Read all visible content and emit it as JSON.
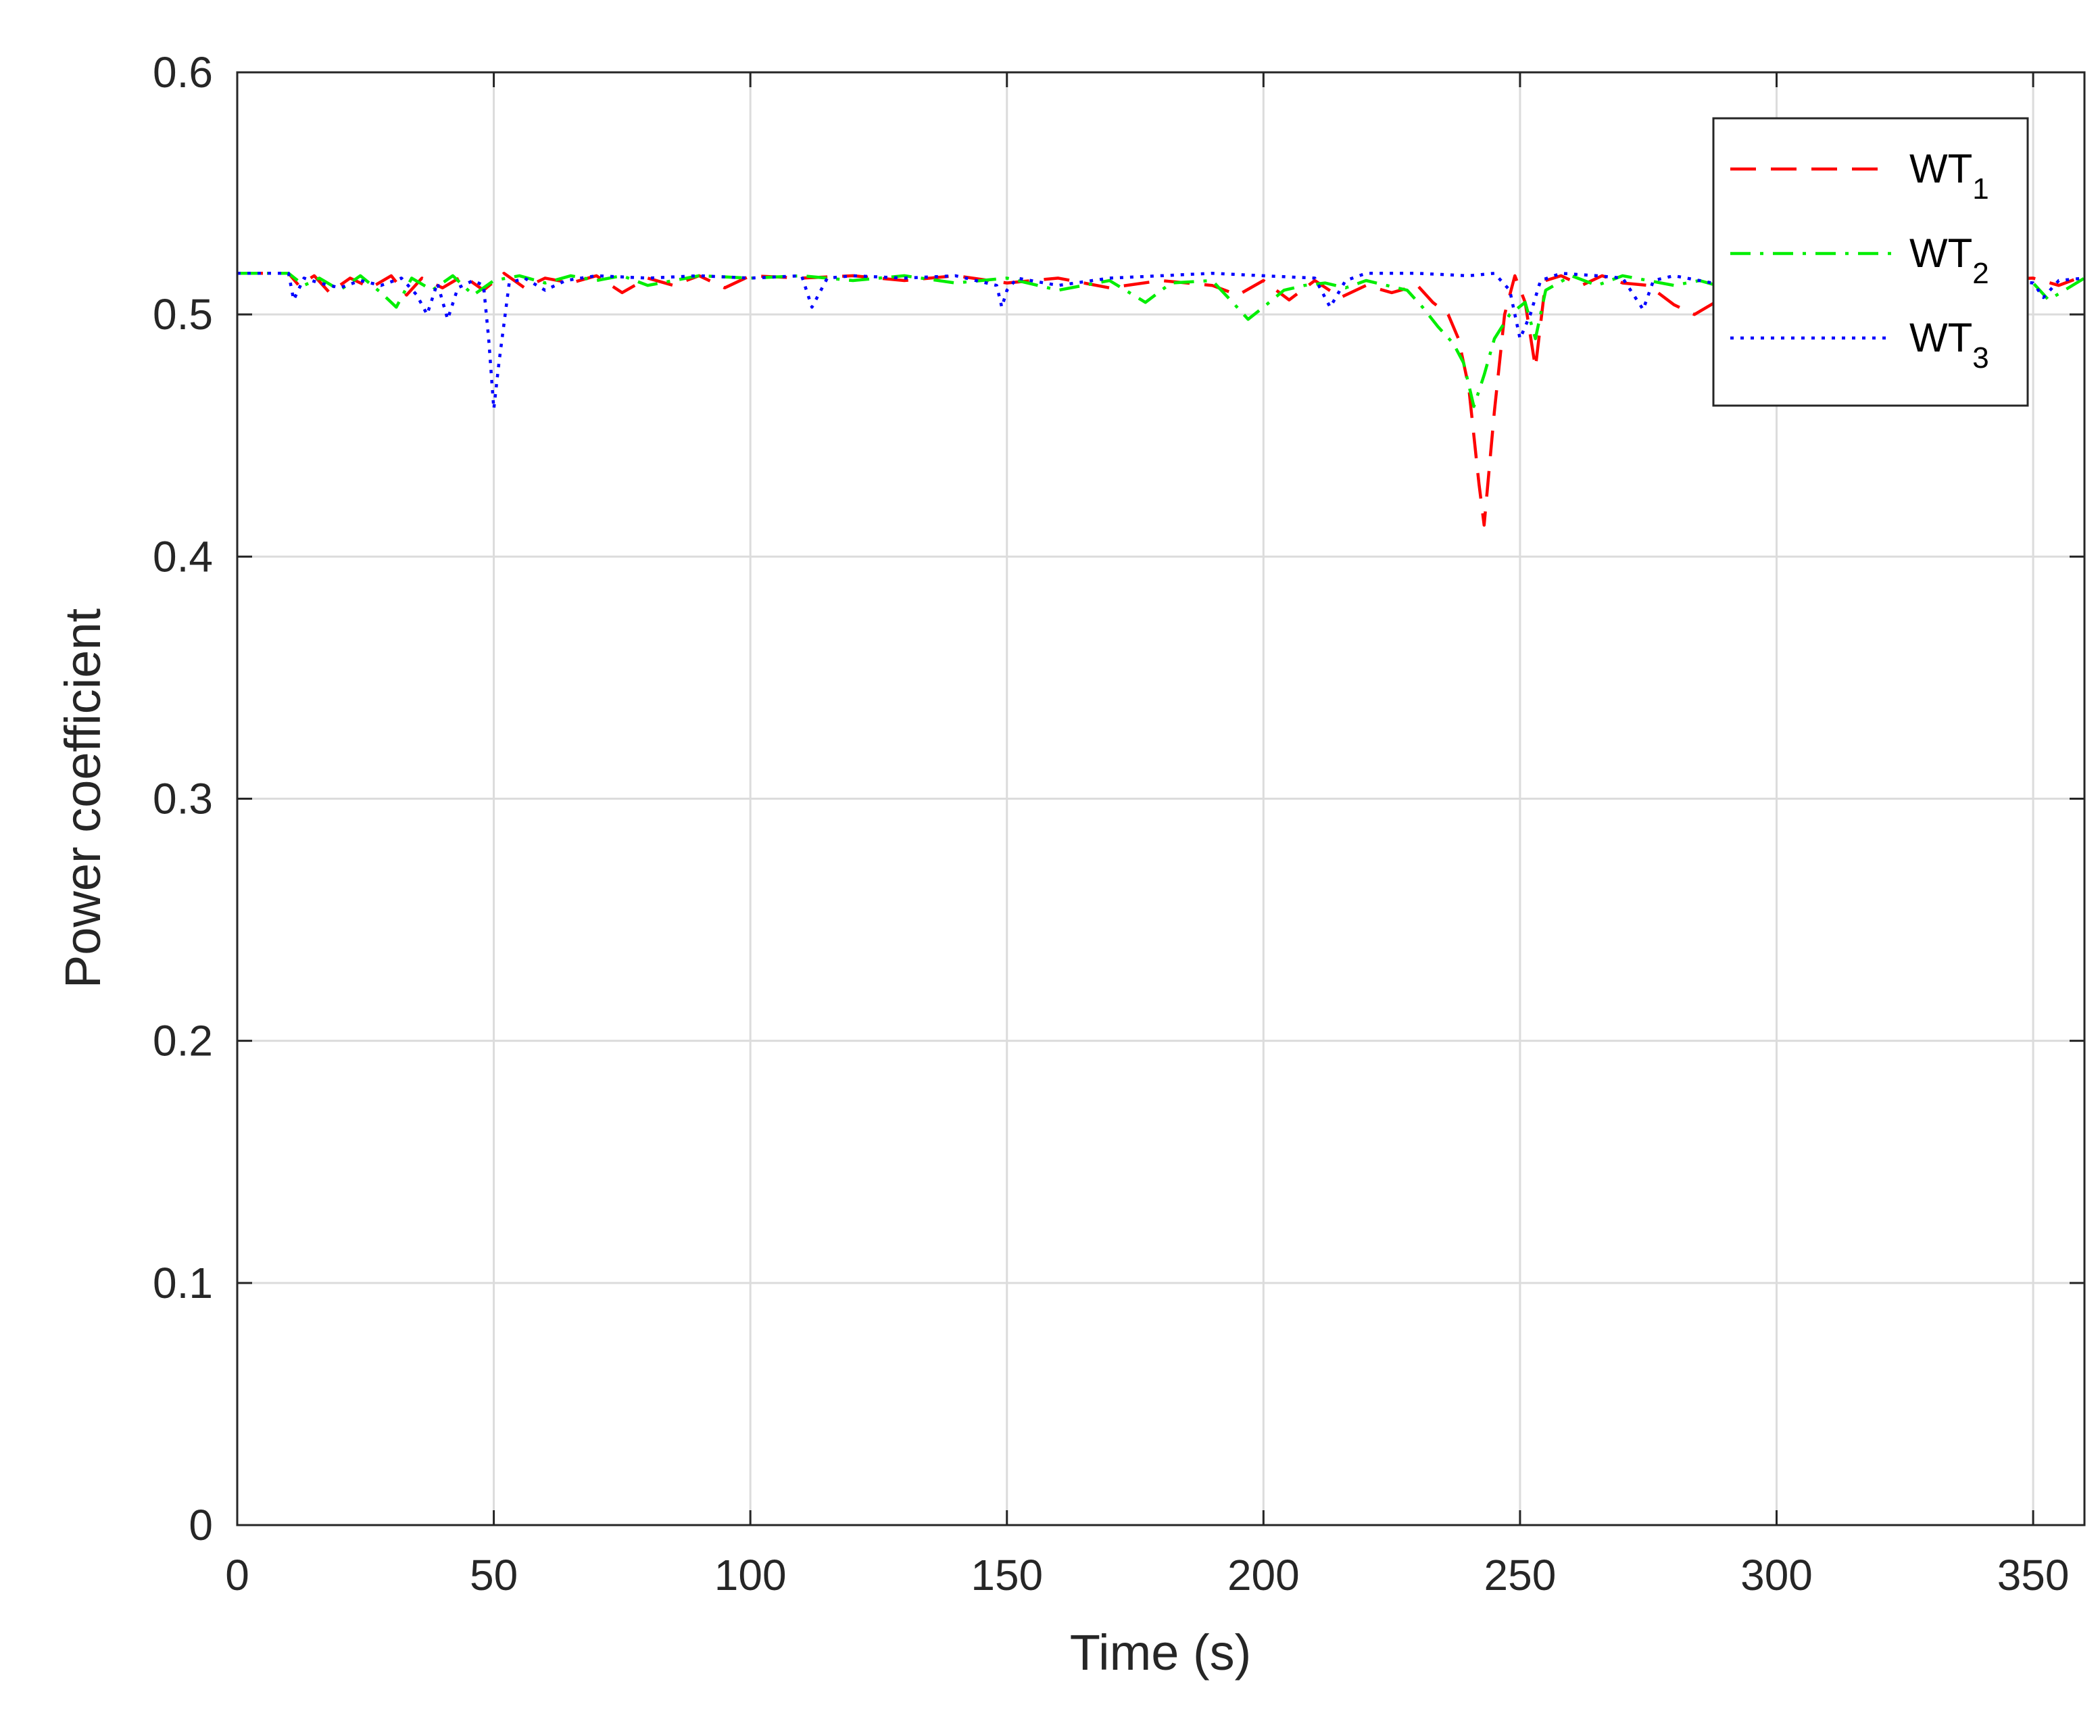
{
  "chart_data": {
    "type": "line",
    "xlabel": "Time (s)",
    "ylabel": "Power coefficient",
    "xlim": [
      0,
      360
    ],
    "ylim": [
      0,
      0.6
    ],
    "xticks": [
      "0",
      "50",
      "100",
      "150",
      "200",
      "250",
      "300",
      "350"
    ],
    "yticks": [
      "0",
      "0.1",
      "0.2",
      "0.3",
      "0.4",
      "0.5",
      "0.6"
    ],
    "grid": true,
    "legend_position": "top-right",
    "series": [
      {
        "name": "WT",
        "subscript": "1",
        "color": "#ff0000",
        "style": "dashed",
        "x": [
          0,
          10,
          12,
          15,
          18,
          22,
          26,
          30,
          33,
          36,
          40,
          44,
          48,
          52,
          56,
          60,
          65,
          70,
          75,
          80,
          85,
          90,
          95,
          100,
          110,
          120,
          130,
          140,
          150,
          160,
          170,
          180,
          190,
          195,
          200,
          205,
          210,
          215,
          220,
          225,
          230,
          233,
          236,
          238,
          240,
          242,
          243,
          245,
          247,
          249,
          251,
          253,
          255,
          258,
          262,
          266,
          270,
          275,
          280,
          284,
          288,
          292,
          296,
          300,
          310,
          320,
          330,
          340,
          350,
          355,
          360
        ],
        "y": [
          0.517,
          0.517,
          0.512,
          0.516,
          0.509,
          0.515,
          0.511,
          0.516,
          0.508,
          0.515,
          0.511,
          0.516,
          0.51,
          0.517,
          0.511,
          0.515,
          0.513,
          0.516,
          0.509,
          0.515,
          0.512,
          0.516,
          0.511,
          0.516,
          0.515,
          0.516,
          0.514,
          0.516,
          0.513,
          0.515,
          0.511,
          0.514,
          0.512,
          0.508,
          0.514,
          0.506,
          0.514,
          0.507,
          0.512,
          0.509,
          0.512,
          0.505,
          0.5,
          0.49,
          0.47,
          0.43,
          0.413,
          0.46,
          0.5,
          0.516,
          0.505,
          0.478,
          0.514,
          0.516,
          0.512,
          0.516,
          0.513,
          0.512,
          0.504,
          0.5,
          0.505,
          0.508,
          0.512,
          0.514,
          0.515,
          0.514,
          0.515,
          0.514,
          0.515,
          0.512,
          0.516
        ]
      },
      {
        "name": "WT",
        "subscript": "2",
        "color": "#00ee00",
        "style": "dash-dot",
        "x": [
          0,
          10,
          13,
          16,
          20,
          24,
          28,
          31,
          34,
          38,
          42,
          46,
          50,
          55,
          60,
          65,
          70,
          75,
          80,
          90,
          100,
          110,
          120,
          130,
          140,
          150,
          160,
          170,
          177,
          182,
          190,
          194,
          197,
          200,
          204,
          208,
          212,
          216,
          220,
          224,
          228,
          231,
          234,
          237,
          239,
          241,
          243,
          245,
          248,
          251,
          253,
          255,
          260,
          265,
          270,
          275,
          280,
          285,
          290,
          300,
          310,
          320,
          330,
          340,
          350,
          353,
          360
        ],
        "y": [
          0.517,
          0.517,
          0.512,
          0.515,
          0.51,
          0.516,
          0.509,
          0.503,
          0.515,
          0.51,
          0.516,
          0.508,
          0.514,
          0.516,
          0.513,
          0.516,
          0.514,
          0.516,
          0.512,
          0.516,
          0.515,
          0.516,
          0.514,
          0.516,
          0.513,
          0.515,
          0.51,
          0.514,
          0.505,
          0.513,
          0.514,
          0.505,
          0.498,
          0.503,
          0.51,
          0.512,
          0.513,
          0.511,
          0.514,
          0.512,
          0.51,
          0.503,
          0.495,
          0.488,
          0.48,
          0.462,
          0.475,
          0.49,
          0.5,
          0.505,
          0.49,
          0.51,
          0.516,
          0.512,
          0.516,
          0.514,
          0.512,
          0.514,
          0.511,
          0.514,
          0.515,
          0.514,
          0.515,
          0.514,
          0.513,
          0.506,
          0.515
        ]
      },
      {
        "name": "WT",
        "subscript": "3",
        "color": "#0000ff",
        "style": "dotted",
        "x": [
          0,
          10,
          11,
          13,
          16,
          20,
          24,
          28,
          32,
          35,
          37,
          39,
          41,
          43,
          46,
          48,
          49,
          50,
          51,
          53,
          56,
          60,
          64,
          70,
          80,
          90,
          100,
          110,
          112,
          115,
          120,
          130,
          140,
          148,
          149,
          150,
          152,
          160,
          170,
          180,
          190,
          200,
          210,
          213,
          216,
          220,
          230,
          240,
          245,
          248,
          250,
          252,
          254,
          258,
          265,
          270,
          274,
          276,
          280,
          290,
          300,
          310,
          320,
          330,
          340,
          350,
          352,
          355,
          360
        ],
        "y": [
          0.517,
          0.517,
          0.506,
          0.515,
          0.513,
          0.511,
          0.514,
          0.512,
          0.515,
          0.508,
          0.5,
          0.513,
          0.498,
          0.511,
          0.514,
          0.512,
          0.49,
          0.461,
          0.48,
          0.513,
          0.515,
          0.51,
          0.514,
          0.516,
          0.515,
          0.516,
          0.515,
          0.516,
          0.503,
          0.515,
          0.516,
          0.515,
          0.516,
          0.512,
          0.503,
          0.51,
          0.515,
          0.512,
          0.515,
          0.516,
          0.517,
          0.516,
          0.515,
          0.503,
          0.514,
          0.517,
          0.517,
          0.516,
          0.517,
          0.51,
          0.49,
          0.5,
          0.514,
          0.517,
          0.516,
          0.515,
          0.502,
          0.514,
          0.516,
          0.512,
          0.516,
          0.515,
          0.516,
          0.514,
          0.515,
          0.513,
          0.507,
          0.514,
          0.515
        ]
      }
    ]
  }
}
